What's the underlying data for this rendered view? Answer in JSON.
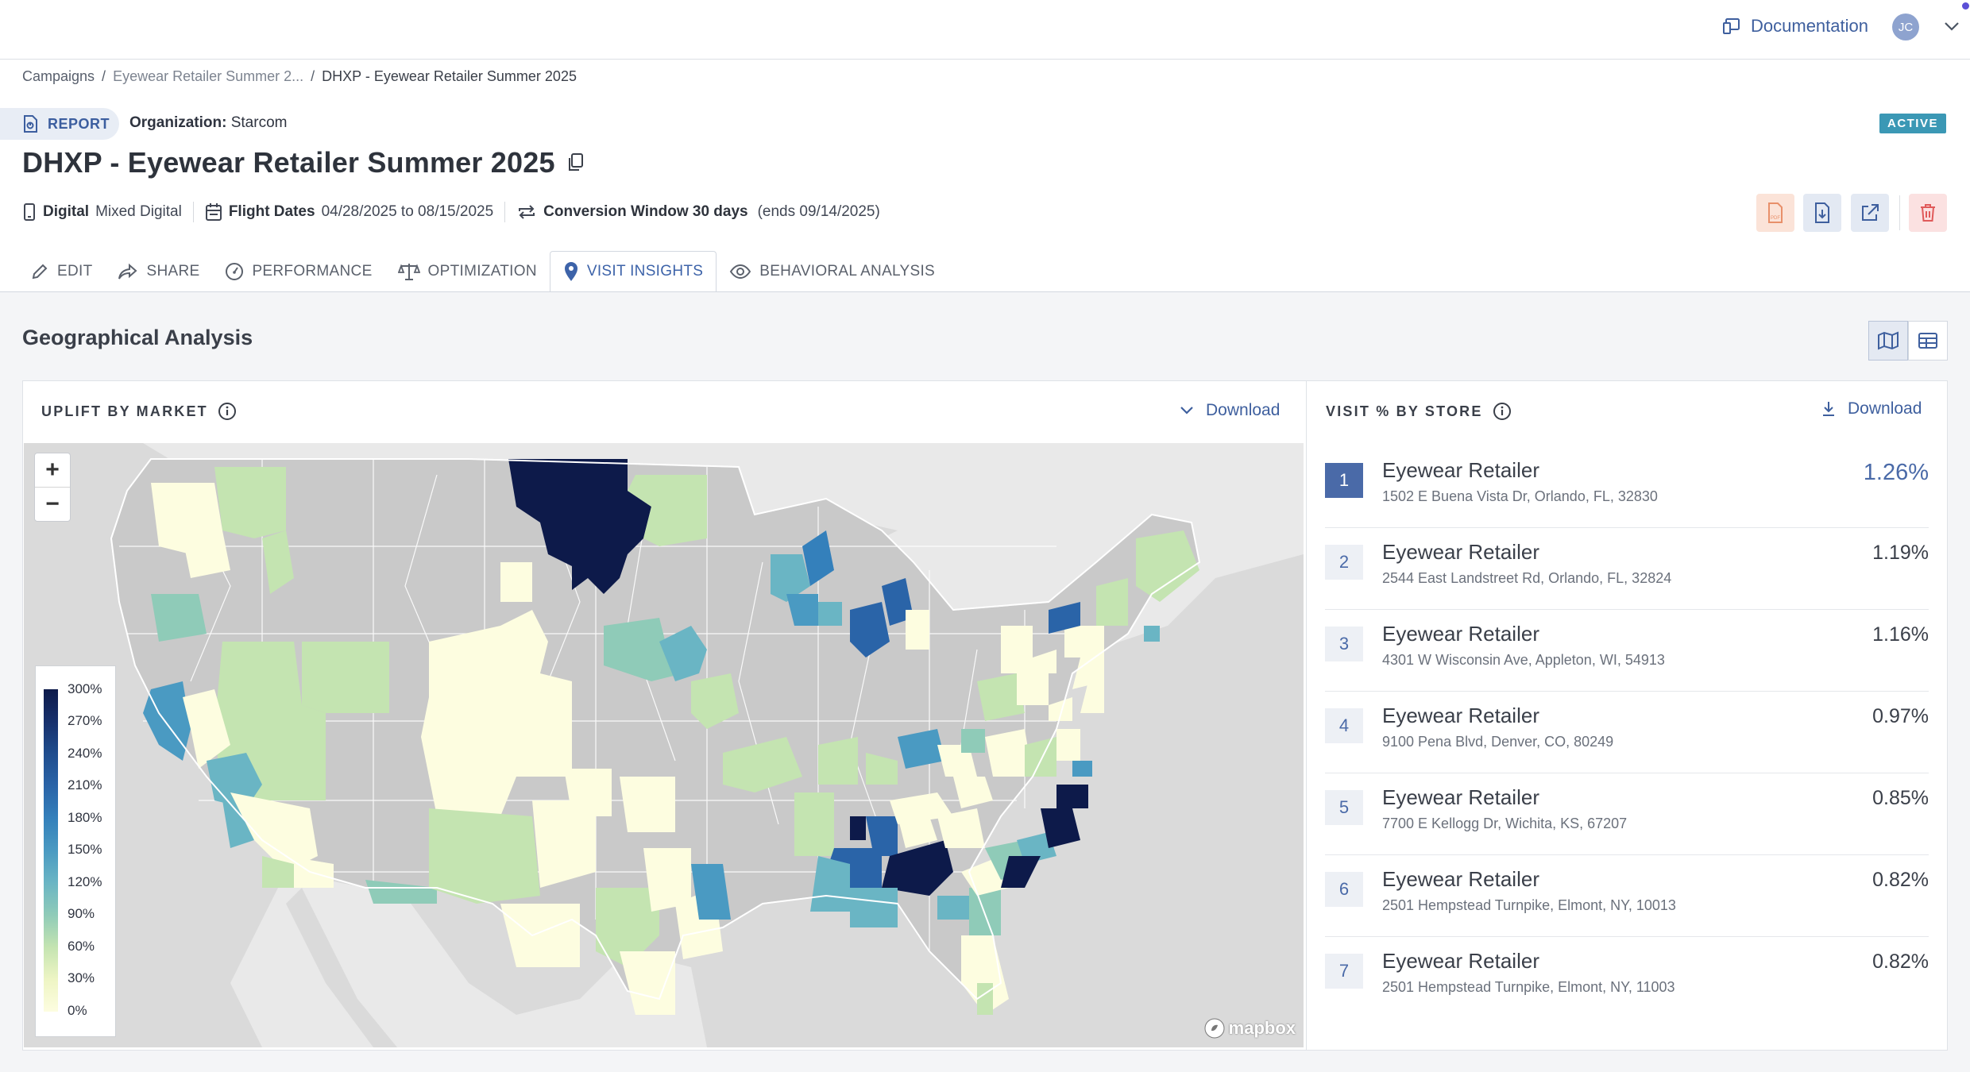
{
  "topbar": {
    "documentation_label": "Documentation",
    "user_initials": "JC"
  },
  "breadcrumb": [
    "Campaigns",
    "Eyewear Retailer Summer 2...",
    "DHXP - Eyewear Retailer Summer 2025"
  ],
  "report": {
    "pill_label": "REPORT",
    "org_label": "Organization:",
    "org_value": "Starcom",
    "status": "ACTIVE"
  },
  "title": "DHXP - Eyewear Retailer Summer 2025",
  "meta": {
    "channel_label": "Digital",
    "channel_value": "Mixed Digital",
    "flight_label": "Flight Dates",
    "flight_value": "04/28/2025 to 08/15/2025",
    "conv_label": "Conversion Window 30 days",
    "conv_value": "(ends 09/14/2025)"
  },
  "tabs": [
    "EDIT",
    "SHARE",
    "PERFORMANCE",
    "OPTIMIZATION",
    "VISIT INSIGHTS",
    "BEHAVIORAL ANALYSIS"
  ],
  "section_title": "Geographical Analysis",
  "uplift_panel": {
    "title": "UPLIFT BY MARKET",
    "download_label": "Download",
    "zoom_in": "+",
    "zoom_out": "−",
    "legend": [
      "300%",
      "270%",
      "240%",
      "210%",
      "180%",
      "150%",
      "120%",
      "90%",
      "60%",
      "30%",
      "0%"
    ],
    "attribution": "mapbox"
  },
  "store_panel": {
    "title": "VISIT % BY STORE",
    "download_label": "Download",
    "stores": [
      {
        "rank": "1",
        "name": "Eyewear Retailer",
        "address": "1502 E Buena Vista Dr, Orlando, FL, 32830",
        "pct": "1.26%"
      },
      {
        "rank": "2",
        "name": "Eyewear Retailer",
        "address": "2544 East Landstreet Rd, Orlando, FL, 32824",
        "pct": "1.19%"
      },
      {
        "rank": "3",
        "name": "Eyewear Retailer",
        "address": "4301 W Wisconsin Ave, Appleton, WI, 54913",
        "pct": "1.16%"
      },
      {
        "rank": "4",
        "name": "Eyewear Retailer",
        "address": "9100 Pena Blvd, Denver, CO, 80249",
        "pct": "0.97%"
      },
      {
        "rank": "5",
        "name": "Eyewear Retailer",
        "address": "7700 E Kellogg Dr, Wichita, KS, 67207",
        "pct": "0.85%"
      },
      {
        "rank": "6",
        "name": "Eyewear Retailer",
        "address": "2501 Hempstead Turnpike, Elmont, NY, 10013",
        "pct": "0.82%"
      },
      {
        "rank": "7",
        "name": "Eyewear Retailer",
        "address": "2501 Hempstead Turnpike, Elmont, NY, 11003",
        "pct": "0.82%"
      }
    ]
  },
  "colors": {
    "accent": "#3e5f9e",
    "active_badge": "#3b98b5",
    "scale": [
      "#0d1a4a",
      "#17306c",
      "#1f4d8e",
      "#2a64a8",
      "#3480bb",
      "#4a9ac2",
      "#6ab5c4",
      "#8fcbb8",
      "#c4e4b1",
      "#eef5c4",
      "#fdfde0"
    ]
  }
}
